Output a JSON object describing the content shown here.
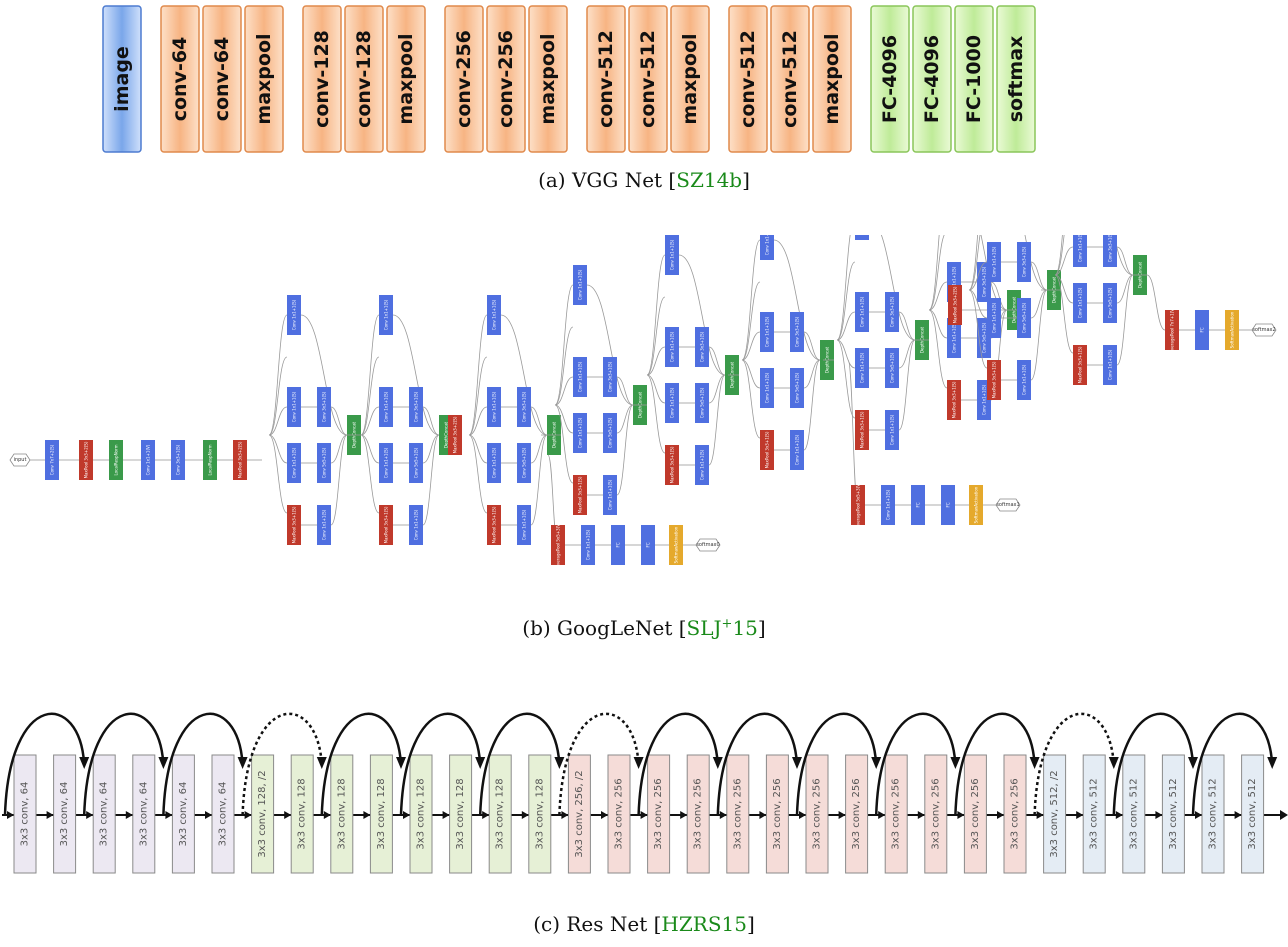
{
  "vgg": {
    "blocks": [
      {
        "label": "image",
        "kind": "input"
      },
      {
        "label": "conv-64",
        "kind": "conv"
      },
      {
        "label": "conv-64",
        "kind": "conv"
      },
      {
        "label": "maxpool",
        "kind": "conv"
      },
      {
        "label": "conv-128",
        "kind": "conv"
      },
      {
        "label": "conv-128",
        "kind": "conv"
      },
      {
        "label": "maxpool",
        "kind": "conv"
      },
      {
        "label": "conv-256",
        "kind": "conv"
      },
      {
        "label": "conv-256",
        "kind": "conv"
      },
      {
        "label": "maxpool",
        "kind": "conv"
      },
      {
        "label": "conv-512",
        "kind": "conv"
      },
      {
        "label": "conv-512",
        "kind": "conv"
      },
      {
        "label": "maxpool",
        "kind": "conv"
      },
      {
        "label": "conv-512",
        "kind": "conv"
      },
      {
        "label": "conv-512",
        "kind": "conv"
      },
      {
        "label": "maxpool",
        "kind": "conv"
      },
      {
        "label": "FC-4096",
        "kind": "fc"
      },
      {
        "label": "FC-4096",
        "kind": "fc"
      },
      {
        "label": "FC-1000",
        "kind": "fc"
      },
      {
        "label": "softmax",
        "kind": "fc"
      }
    ],
    "groups": [
      [
        0
      ],
      [
        1,
        2,
        3
      ],
      [
        4,
        5,
        6
      ],
      [
        7,
        8,
        9
      ],
      [
        10,
        11,
        12
      ],
      [
        13,
        14,
        15
      ],
      [
        16,
        17,
        18,
        19
      ]
    ]
  },
  "captions": {
    "a": {
      "prefix": "(a)  VGG Net [",
      "cite": "SZ14b",
      "suffix": "]"
    },
    "b": {
      "prefix": "(b)  GoogLeNet [",
      "cite": "SLJ",
      "sup": "+",
      "cite2": "15",
      "suffix": "]"
    },
    "c": {
      "prefix": "(c)  Res Net [",
      "cite": "HZRS15",
      "suffix": "]"
    }
  },
  "googlenet": {
    "input_label": "input",
    "stem": [
      "Conv 7x7+2(S)",
      "MaxPool 3x3+2(S)",
      "LocalRespNorm",
      "Conv 1x1+1(V)",
      "Conv 3x3+1(S)",
      "LocalRespNorm",
      "MaxPool 3x3+2(S)"
    ],
    "concat_label": "DepthConcat",
    "conv1_label": "Conv 1x1+1(S)",
    "conv3_label": "Conv 3x3+1(S)",
    "conv5_label": "Conv 5x5+1(S)",
    "pool_label": "MaxPool 3x3+1(S)",
    "avgpool_aux": "AveragePool 5x5+3(V)",
    "avgpool_final": "AveragePool 7x7+1(V)",
    "fc_label": "FC",
    "softmax_act": "SoftmaxActivation",
    "outputs": [
      "softmax0",
      "softmax1",
      "softmax2"
    ],
    "colors": {
      "conv": "#4f6fe0",
      "pool": "#c0392b",
      "concat": "#3a9a4a",
      "softmax": "#e5a92c"
    }
  },
  "resnet": {
    "layers": [
      "3x3 conv, 64",
      "3x3 conv, 64",
      "3x3 conv, 64",
      "3x3 conv, 64",
      "3x3 conv, 64",
      "3x3 conv, 64",
      "3x3 conv, 128, /2",
      "3x3 conv, 128",
      "3x3 conv, 128",
      "3x3 conv, 128",
      "3x3 conv, 128",
      "3x3 conv, 128",
      "3x3 conv, 128",
      "3x3 conv, 128",
      "3x3 conv, 256, /2",
      "3x3 conv, 256",
      "3x3 conv, 256",
      "3x3 conv, 256",
      "3x3 conv, 256",
      "3x3 conv, 256",
      "3x3 conv, 256",
      "3x3 conv, 256",
      "3x3 conv, 256",
      "3x3 conv, 256",
      "3x3 conv, 256",
      "3x3 conv, 256",
      "3x3 conv, 512, /2",
      "3x3 conv, 512",
      "3x3 conv, 512",
      "3x3 conv, 512",
      "3x3 conv, 512",
      "3x3 conv, 512"
    ],
    "dotted_skips": [
      3,
      7,
      13
    ],
    "colors": {
      "64": "#ece8f2",
      "128": "#e6f0d6",
      "256": "#f5dcd8",
      "512": "#e4ecf4"
    }
  }
}
